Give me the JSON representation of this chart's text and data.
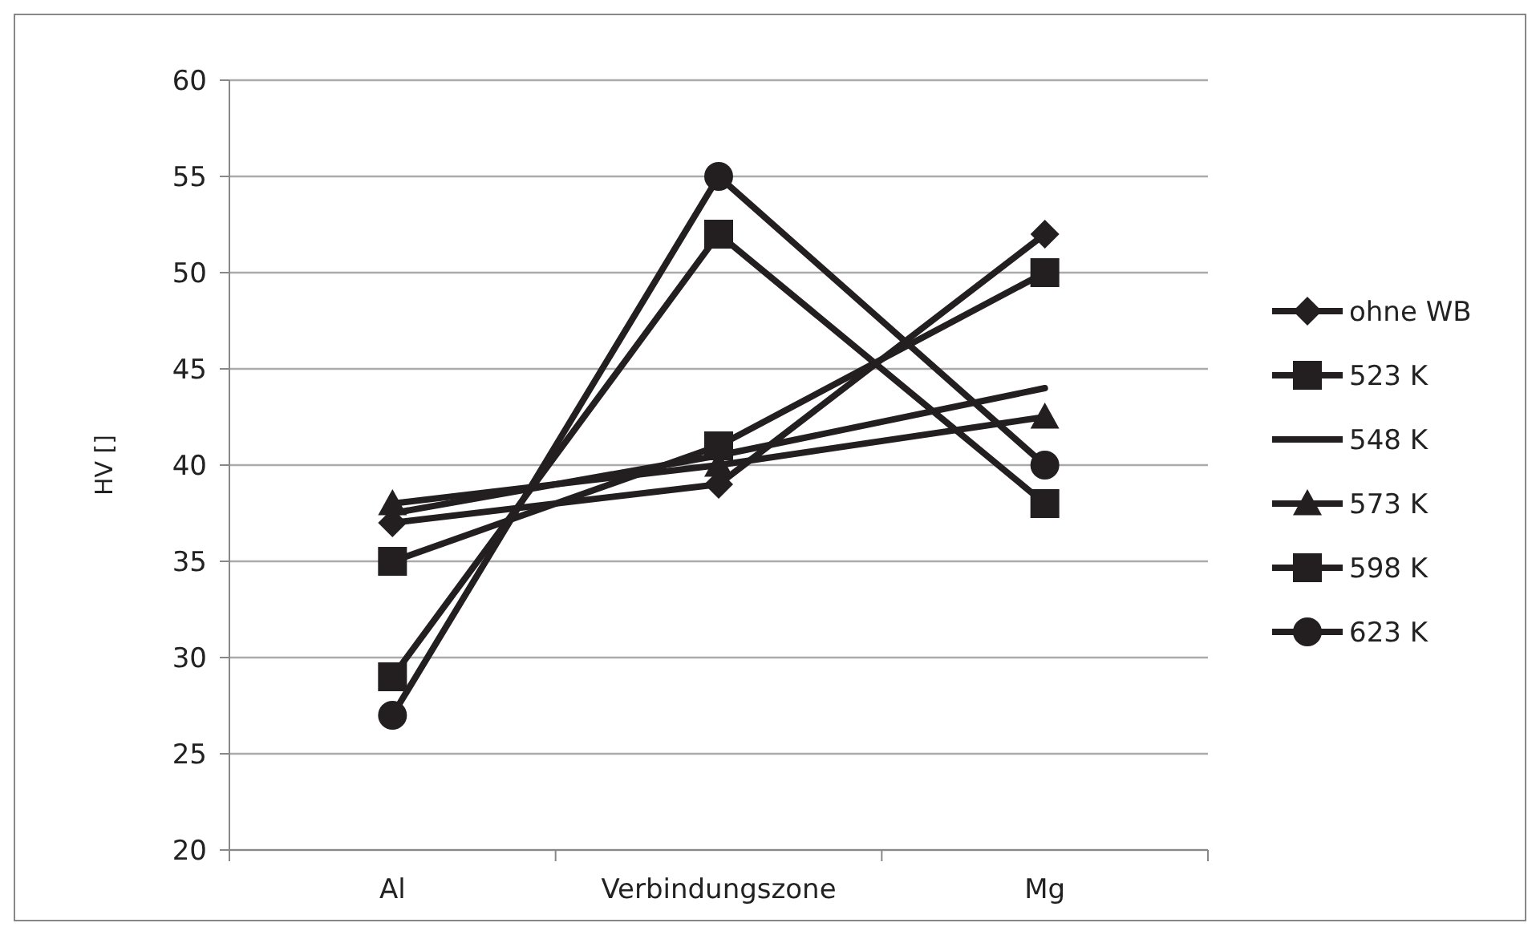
{
  "chart_data": {
    "type": "line",
    "ylabel": "HV []",
    "categories": [
      "Al",
      "Verbindungszone",
      "Mg"
    ],
    "ylim": [
      20,
      60
    ],
    "yticks": [
      20,
      25,
      30,
      35,
      40,
      45,
      50,
      55,
      60
    ],
    "grid": "y",
    "legend": "right",
    "series": [
      {
        "name": "ohne WB",
        "color": "#231f20",
        "marker": "diamond",
        "values": [
          37,
          39,
          52
        ]
      },
      {
        "name": "523 K",
        "color": "#231f20",
        "marker": "square",
        "values": [
          35,
          41,
          50
        ]
      },
      {
        "name": "548 K",
        "color": "#231f20",
        "marker": "none",
        "values": [
          37.5,
          40.5,
          44
        ]
      },
      {
        "name": "573 K",
        "color": "#231f20",
        "marker": "triangle",
        "values": [
          38,
          40,
          42.5
        ]
      },
      {
        "name": "598 K",
        "color": "#231f20",
        "marker": "square",
        "values": [
          29,
          52,
          38
        ]
      },
      {
        "name": "623 K",
        "color": "#231f20",
        "marker": "circle",
        "values": [
          27,
          55,
          40
        ]
      }
    ]
  }
}
